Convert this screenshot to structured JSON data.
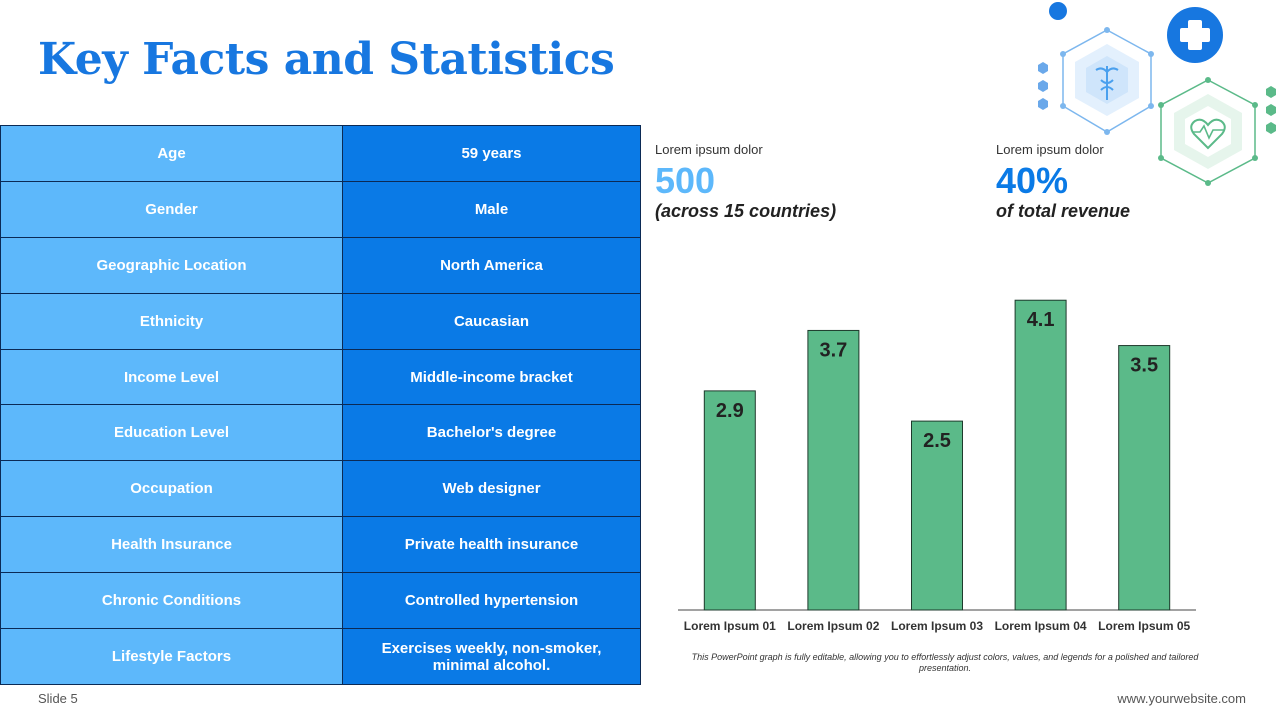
{
  "header": {
    "title": "Key Facts and Statistics"
  },
  "table": {
    "rows": [
      {
        "label": "Age",
        "value": "59 years"
      },
      {
        "label": "Gender",
        "value": "Male"
      },
      {
        "label": "Geographic Location",
        "value": "North America"
      },
      {
        "label": "Ethnicity",
        "value": "Caucasian"
      },
      {
        "label": "Income Level",
        "value": "Middle-income bracket"
      },
      {
        "label": "Education Level",
        "value": "Bachelor's degree"
      },
      {
        "label": "Occupation",
        "value": "Web designer"
      },
      {
        "label": "Health Insurance",
        "value": "Private health insurance"
      },
      {
        "label": "Chronic Conditions",
        "value": "Controlled hypertension"
      },
      {
        "label": "Lifestyle Factors",
        "value": "Exercises weekly, non-smoker, minimal alcohol."
      }
    ],
    "colors": {
      "label_bg": "#5db8fb",
      "value_bg": "#0a7ae6"
    }
  },
  "stats": [
    {
      "label": "Lorem ipsum dolor",
      "value": "500",
      "sub": "(across 15 countries)"
    },
    {
      "label": "Lorem ipsum dolor",
      "value": "40%",
      "sub": "of total revenue"
    }
  ],
  "chart_data": {
    "type": "bar",
    "categories": [
      "Lorem Ipsum 01",
      "Lorem Ipsum 02",
      "Lorem Ipsum 03",
      "Lorem Ipsum 04",
      "Lorem Ipsum 05"
    ],
    "values": [
      2.9,
      3.7,
      2.5,
      4.1,
      3.5
    ],
    "data_labels": [
      "2.9",
      "3.7",
      "2.5",
      "4.1",
      "3.5"
    ],
    "ylim": [
      0,
      4.5
    ],
    "bar_color": "#5bba89",
    "grid": false
  },
  "footnote": "This PowerPoint graph is fully editable, allowing you to effortlessly adjust colors, values, and legends for a polished and tailored presentation.",
  "footer": {
    "slide": "Slide 5",
    "website": "www.yourwebsite.com"
  },
  "icons": [
    "medical-cross-icon",
    "caduceus-icon",
    "heart-pulse-icon"
  ],
  "accent": "#1777e0"
}
